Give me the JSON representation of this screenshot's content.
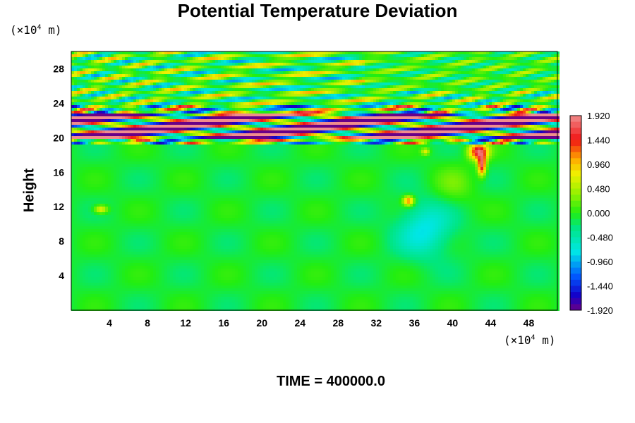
{
  "chart_data": {
    "type": "heatmap",
    "title": "Potential Temperature Deviation",
    "ylabel": "Height",
    "y_unit": "(×10",
    "y_unit_exp": "4",
    "y_unit_tail": " m)",
    "x_unit": "(×10",
    "x_unit_exp": "4",
    "x_unit_tail": " m)",
    "xlim": [
      0,
      51
    ],
    "ylim": [
      0,
      30
    ],
    "x_ticks": [
      4,
      8,
      12,
      16,
      20,
      24,
      28,
      32,
      36,
      40,
      44,
      48
    ],
    "y_ticks": [
      4,
      8,
      12,
      16,
      20,
      24,
      28
    ],
    "x_tick_labels": [
      "4",
      "8",
      "12",
      "16",
      "20",
      "24",
      "28",
      "32",
      "36",
      "40",
      "44",
      "48"
    ],
    "y_tick_labels": [
      "4",
      "8",
      "12",
      "16",
      "20",
      "24",
      "28"
    ],
    "colorbar": {
      "min": -1.92,
      "max": 1.92,
      "tick_labels": [
        "1.920",
        "1.440",
        "0.960",
        "0.480",
        "0.000",
        "-0.480",
        "-0.960",
        "-1.440",
        "-1.920"
      ],
      "tick_values": [
        1.92,
        1.44,
        0.96,
        0.48,
        0.0,
        -0.48,
        -0.96,
        -1.44,
        -1.92
      ],
      "levels": 32
    },
    "colors": {
      "background_field": "#22ee10",
      "max_color": "#f08080",
      "min_color": "#6a0088"
    },
    "time_label": "TIME = 400000.0"
  }
}
